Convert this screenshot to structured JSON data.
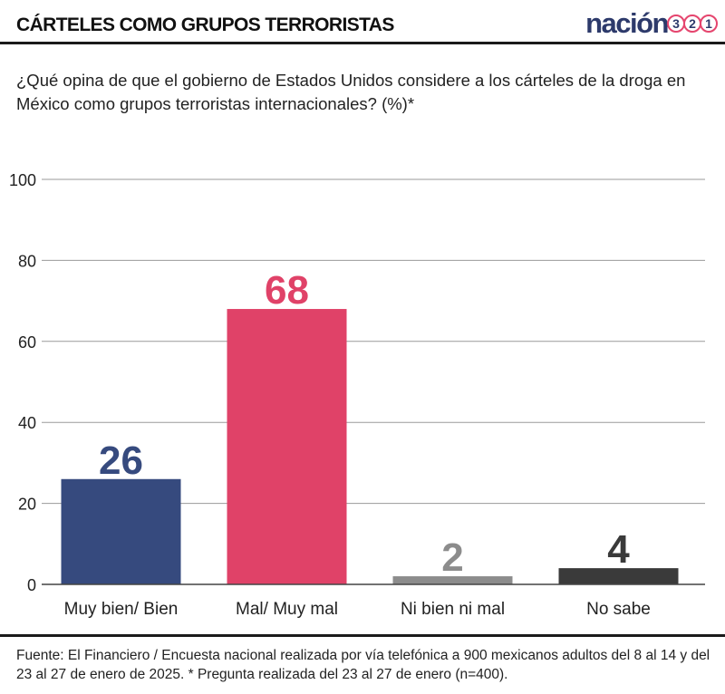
{
  "header": {
    "title": "CÁRTELES COMO GRUPOS TERRORISTAS",
    "brand": {
      "word": "nación",
      "digits": [
        "3",
        "2",
        "1"
      ]
    }
  },
  "question": "¿Qué opina de que el gobierno de Estados Unidos considere a los cárteles de la droga en México como grupos  terroristas internacionales? (%)*",
  "chart_data": {
    "type": "bar",
    "categories": [
      "Muy bien/ Bien",
      "Mal/ Muy mal",
      "Ni bien ni mal",
      "No sabe"
    ],
    "values": [
      26,
      68,
      2,
      4
    ],
    "colors": [
      "#364a7e",
      "#e04268",
      "#8c8c8c",
      "#3a3a3a"
    ],
    "ylim": [
      0,
      100
    ],
    "yticks": [
      0,
      20,
      40,
      60,
      80,
      100
    ],
    "grid": true,
    "data_labels": true,
    "legend": "none"
  },
  "source": "Fuente: El Financiero / Encuesta nacional realizada por vía telefónica a 900 mexicanos adultos del 8 al 14 y del 23 al 27 de enero de 2025. * Pregunta realizada del 23 al 27 de enero (n=400)."
}
